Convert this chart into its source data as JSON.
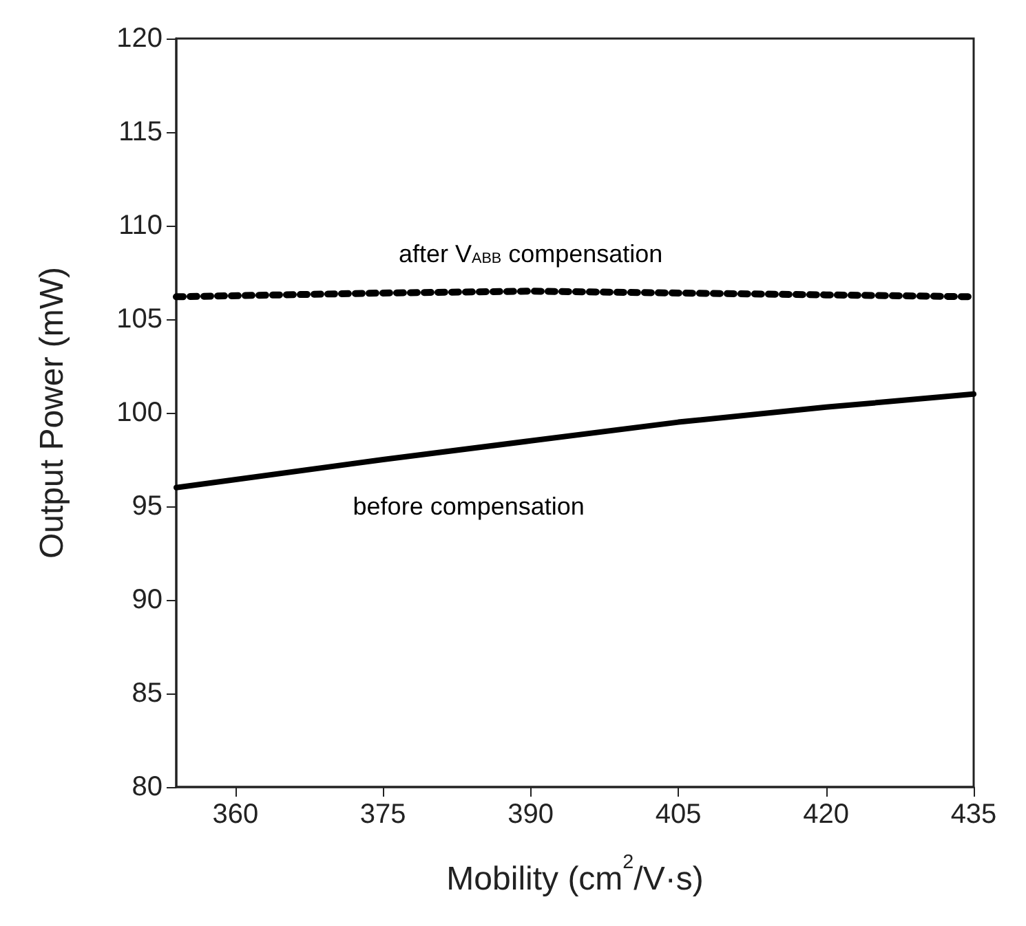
{
  "chart_data": {
    "type": "line",
    "xlabel": "Mobility (cm$^{2}$/V·s)",
    "ylabel": "Output Power (mW)",
    "xlim": [
      354,
      435
    ],
    "xticks": [
      360,
      375,
      390,
      405,
      420,
      435
    ],
    "ylim": [
      80,
      120
    ],
    "yticks": [
      80,
      85,
      90,
      95,
      100,
      105,
      110,
      115,
      120
    ],
    "grid": false,
    "marker": "none",
    "series": [
      {
        "color": "#000000",
        "line_style": "dotted",
        "x": [
          354,
          375,
          390,
          405,
          420,
          435
        ],
        "values": [
          106.2,
          106.4,
          106.5,
          106.4,
          106.3,
          106.2
        ]
      },
      {
        "color": "#000000",
        "line_style": "solid",
        "x": [
          354,
          375,
          390,
          405,
          420,
          435
        ],
        "values": [
          96,
          97.5,
          98.5,
          99.5,
          100.3,
          101
        ]
      }
    ],
    "annotations": [
      "after V$_{ABB}$ compensation",
      "before compensation"
    ]
  }
}
